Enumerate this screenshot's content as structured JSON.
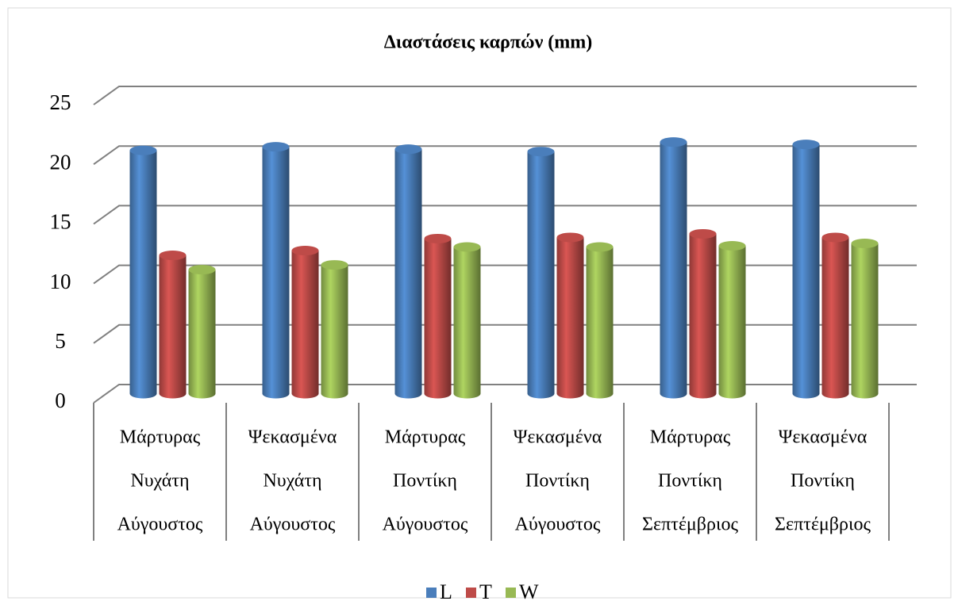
{
  "chart_data": {
    "type": "bar3d",
    "title": "Διαστάσεις καρπών (mm)",
    "categories": [
      [
        "Μάρτυρας",
        "Νυχάτη",
        "Αύγουστος"
      ],
      [
        "Ψεκασμένα",
        "Νυχάτη",
        "Αύγουστος"
      ],
      [
        "Μάρτυρας",
        "Ποντίκη",
        "Αύγουστος"
      ],
      [
        "Ψεκασμένα",
        "Ποντίκη",
        "Αύγουστος"
      ],
      [
        "Μάρτυρας",
        "Ποντίκη",
        "Σεπτέμβριος"
      ],
      [
        "Ψεκασμένα",
        "Ποντίκη",
        "Σεπτέμβριος"
      ]
    ],
    "series": [
      {
        "name": "L",
        "color": "#4a7ebb",
        "values": [
          20.4,
          20.7,
          20.5,
          20.3,
          21.1,
          20.9
        ]
      },
      {
        "name": "T",
        "color": "#be4b48",
        "values": [
          11.6,
          12.0,
          13.0,
          13.1,
          13.4,
          13.1
        ]
      },
      {
        "name": "W",
        "color": "#98b954",
        "values": [
          10.4,
          10.8,
          12.3,
          12.3,
          12.4,
          12.6
        ]
      }
    ],
    "ylim": [
      0,
      25
    ],
    "yticks": [
      0,
      5,
      10,
      15,
      20,
      25
    ],
    "grid": true,
    "legend": "bottom"
  }
}
